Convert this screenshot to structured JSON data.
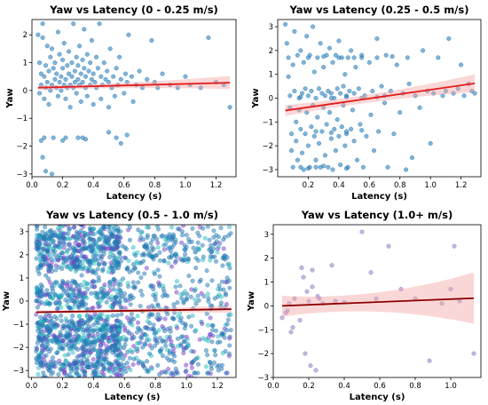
{
  "chart_data": [
    {
      "type": "scatter",
      "title": "Yaw vs Latency (0 - 0.25 m/s)",
      "xlabel": "Latency (s)",
      "ylabel": "Yaw",
      "xlim": [
        0.0,
        1.33
      ],
      "ylim": [
        -3.1,
        2.55
      ],
      "xticks": [
        0.0,
        0.2,
        0.4,
        0.6,
        0.8,
        1.0,
        1.2
      ],
      "yticks": [
        -3,
        -2,
        -1,
        0,
        1,
        2
      ],
      "point_color": "#1f77b4",
      "fit_color": "#e31a1c",
      "band_color": "#f4a6a6",
      "regression": {
        "x": [
          0.04,
          1.29
        ],
        "y": [
          0.1,
          0.28
        ],
        "ci_lower": [
          0.02,
          0.05
        ],
        "ci_upper": [
          0.18,
          0.52
        ]
      },
      "points": [
        [
          0.04,
          2.0
        ],
        [
          0.05,
          1.0
        ],
        [
          0.05,
          -0.1
        ],
        [
          0.06,
          0.2
        ],
        [
          0.06,
          0.6
        ],
        [
          0.07,
          2.4
        ],
        [
          0.07,
          1.9
        ],
        [
          0.08,
          0.5
        ],
        [
          0.08,
          -0.3
        ],
        [
          0.09,
          0.1
        ],
        [
          0.09,
          0.9
        ],
        [
          0.1,
          1.6
        ],
        [
          0.1,
          0.3
        ],
        [
          0.11,
          -0.5
        ],
        [
          0.11,
          0.7
        ],
        [
          0.12,
          1.2
        ],
        [
          0.12,
          0.0
        ],
        [
          0.13,
          1.5
        ],
        [
          0.13,
          0.2
        ],
        [
          0.14,
          0.8
        ],
        [
          0.14,
          -1.7
        ],
        [
          0.15,
          0.4
        ],
        [
          0.15,
          1.0
        ],
        [
          0.16,
          0.1
        ],
        [
          0.16,
          0.6
        ],
        [
          0.17,
          -0.2
        ],
        [
          0.17,
          2.1
        ],
        [
          0.18,
          0.3
        ],
        [
          0.18,
          1.3
        ],
        [
          0.19,
          0.5
        ],
        [
          0.19,
          0.0
        ],
        [
          0.2,
          1.1
        ],
        [
          0.2,
          0.8
        ],
        [
          0.21,
          0.2
        ],
        [
          0.21,
          1.7
        ],
        [
          0.22,
          0.4
        ],
        [
          0.22,
          -0.3
        ],
        [
          0.23,
          0.9
        ],
        [
          0.23,
          0.1
        ],
        [
          0.24,
          1.4
        ],
        [
          0.24,
          0.6
        ],
        [
          0.25,
          0.2
        ],
        [
          0.25,
          -0.6
        ],
        [
          0.26,
          0.5
        ],
        [
          0.26,
          1.0
        ],
        [
          0.27,
          0.1
        ],
        [
          0.27,
          2.4
        ],
        [
          0.28,
          0.3
        ],
        [
          0.28,
          0.7
        ],
        [
          0.29,
          1.2
        ],
        [
          0.29,
          -0.1
        ],
        [
          0.3,
          0.4
        ],
        [
          0.3,
          0.9
        ],
        [
          0.31,
          0.2
        ],
        [
          0.31,
          1.6
        ],
        [
          0.32,
          0.6
        ],
        [
          0.32,
          -0.4
        ],
        [
          0.33,
          1.1
        ],
        [
          0.33,
          0.3
        ],
        [
          0.34,
          0.8
        ],
        [
          0.34,
          2.2
        ],
        [
          0.35,
          0.1
        ],
        [
          0.35,
          0.5
        ],
        [
          0.36,
          1.3
        ],
        [
          0.36,
          -0.2
        ],
        [
          0.37,
          0.7
        ],
        [
          0.38,
          0.2
        ],
        [
          0.38,
          1.0
        ],
        [
          0.39,
          0.4
        ],
        [
          0.39,
          1.8
        ],
        [
          0.4,
          0.6
        ],
        [
          0.4,
          -0.5
        ],
        [
          0.41,
          0.3
        ],
        [
          0.42,
          1.2
        ],
        [
          0.42,
          0.1
        ],
        [
          0.43,
          0.8
        ],
        [
          0.44,
          2.4
        ],
        [
          0.45,
          0.5
        ],
        [
          0.45,
          -0.3
        ],
        [
          0.46,
          0.2
        ],
        [
          0.47,
          1.0
        ],
        [
          0.48,
          0.4
        ],
        [
          0.49,
          0.7
        ],
        [
          0.5,
          -0.6
        ],
        [
          0.5,
          0.3
        ],
        [
          0.51,
          1.5
        ],
        [
          0.52,
          0.1
        ],
        [
          0.53,
          0.5
        ],
        [
          0.54,
          -0.2
        ],
        [
          0.55,
          0.8
        ],
        [
          0.56,
          0.2
        ],
        [
          0.57,
          1.2
        ],
        [
          0.58,
          0.4
        ],
        [
          0.6,
          -0.1
        ],
        [
          0.61,
          0.6
        ],
        [
          0.62,
          0.3
        ],
        [
          0.63,
          2.0
        ],
        [
          0.65,
          0.5
        ],
        [
          0.66,
          -0.4
        ],
        [
          0.68,
          0.2
        ],
        [
          0.7,
          0.7
        ],
        [
          0.72,
          0.1
        ],
        [
          0.75,
          0.4
        ],
        [
          0.78,
          1.8
        ],
        [
          0.8,
          0.3
        ],
        [
          0.82,
          0.1
        ],
        [
          0.85,
          0.6
        ],
        [
          0.9,
          0.2
        ],
        [
          0.95,
          0.1
        ],
        [
          1.0,
          0.5
        ],
        [
          1.03,
          0.2
        ],
        [
          1.1,
          0.1
        ],
        [
          1.15,
          1.9
        ],
        [
          1.2,
          0.3
        ],
        [
          1.25,
          0.2
        ],
        [
          1.29,
          -0.6
        ],
        [
          0.06,
          -1.8
        ],
        [
          0.08,
          -1.7
        ],
        [
          0.07,
          -2.4
        ],
        [
          0.09,
          -2.9
        ],
        [
          0.13,
          -3.0
        ],
        [
          0.2,
          -1.8
        ],
        [
          0.22,
          -1.7
        ],
        [
          0.33,
          -1.7
        ],
        [
          0.35,
          -1.75
        ],
        [
          0.5,
          -1.5
        ],
        [
          0.55,
          -1.7
        ],
        [
          0.58,
          -1.9
        ],
        [
          0.62,
          -1.6
        ],
        [
          0.3,
          -1.7
        ]
      ]
    },
    {
      "type": "scatter",
      "title": "Yaw vs Latency (0.25 - 0.5 m/s)",
      "xlabel": "Latency (s)",
      "ylabel": "Yaw",
      "xlim": [
        0.0,
        1.33
      ],
      "ylim": [
        -3.3,
        3.3
      ],
      "xticks": [
        0.2,
        0.4,
        0.6,
        0.8,
        1.0,
        1.2
      ],
      "yticks": [
        -3,
        -2,
        -1,
        0,
        1,
        2,
        3
      ],
      "point_color": "#1f77b4",
      "fit_color": "#e31a1c",
      "band_color": "#f4a6a6",
      "regression": {
        "x": [
          0.05,
          1.29
        ],
        "y": [
          -0.52,
          0.62
        ],
        "ci_lower": [
          -0.75,
          0.25
        ],
        "ci_upper": [
          -0.3,
          1.0
        ]
      },
      "points": [
        [
          0.05,
          3.1
        ],
        [
          0.06,
          2.3
        ],
        [
          0.07,
          1.7
        ],
        [
          0.07,
          0.9
        ],
        [
          0.08,
          0.1
        ],
        [
          0.08,
          -0.4
        ],
        [
          0.09,
          -1.5
        ],
        [
          0.09,
          -2.2
        ],
        [
          0.1,
          -2.9
        ],
        [
          0.1,
          1.4
        ],
        [
          0.11,
          2.8
        ],
        [
          0.11,
          0.3
        ],
        [
          0.12,
          -1.0
        ],
        [
          0.12,
          -1.8
        ],
        [
          0.13,
          -2.6
        ],
        [
          0.13,
          1.8
        ],
        [
          0.14,
          0.0
        ],
        [
          0.14,
          -0.5
        ],
        [
          0.15,
          2.0
        ],
        [
          0.15,
          -1.3
        ],
        [
          0.16,
          0.2
        ],
        [
          0.16,
          -2.3
        ],
        [
          0.17,
          1.5
        ],
        [
          0.17,
          -3.0
        ],
        [
          0.18,
          0.4
        ],
        [
          0.18,
          -1.5
        ],
        [
          0.19,
          2.6
        ],
        [
          0.19,
          -0.6
        ],
        [
          0.2,
          0.1
        ],
        [
          0.2,
          -2.0
        ],
        [
          0.21,
          1.8
        ],
        [
          0.21,
          -2.9
        ],
        [
          0.22,
          0.3
        ],
        [
          0.22,
          -1.2
        ],
        [
          0.23,
          3.0
        ],
        [
          0.23,
          -0.3
        ],
        [
          0.24,
          1.1
        ],
        [
          0.24,
          -1.6
        ],
        [
          0.25,
          0.0
        ],
        [
          0.25,
          -2.6
        ],
        [
          0.26,
          1.7
        ],
        [
          0.26,
          -0.8
        ],
        [
          0.27,
          0.4
        ],
        [
          0.27,
          -1.9
        ],
        [
          0.28,
          2.3
        ],
        [
          0.28,
          -2.9
        ],
        [
          0.29,
          0.2
        ],
        [
          0.29,
          -1.4
        ],
        [
          0.3,
          1.3
        ],
        [
          0.3,
          -0.4
        ],
        [
          0.31,
          0.1
        ],
        [
          0.31,
          -2.4
        ],
        [
          0.32,
          1.8
        ],
        [
          0.32,
          -1.1
        ],
        [
          0.33,
          0.3
        ],
        [
          0.33,
          -2.9
        ],
        [
          0.34,
          2.1
        ],
        [
          0.34,
          -0.6
        ],
        [
          0.35,
          0.2
        ],
        [
          0.35,
          -1.7
        ],
        [
          0.36,
          1.5
        ],
        [
          0.36,
          -3.0
        ],
        [
          0.37,
          0.0
        ],
        [
          0.37,
          -1.3
        ],
        [
          0.38,
          1.8
        ],
        [
          0.38,
          -2.2
        ],
        [
          0.39,
          0.4
        ],
        [
          0.39,
          -0.9
        ],
        [
          0.4,
          2.4
        ],
        [
          0.4,
          -1.6
        ],
        [
          0.41,
          0.2
        ],
        [
          0.41,
          -2.8
        ],
        [
          0.42,
          1.7
        ],
        [
          0.42,
          -1.2
        ],
        [
          0.43,
          0.5
        ],
        [
          0.43,
          -0.3
        ],
        [
          0.44,
          1.0
        ],
        [
          0.44,
          -2.0
        ],
        [
          0.45,
          0.1
        ],
        [
          0.45,
          -1.5
        ],
        [
          0.46,
          1.7
        ],
        [
          0.46,
          -2.9
        ],
        [
          0.47,
          0.3
        ],
        [
          0.48,
          -1.3
        ],
        [
          0.48,
          2.0
        ],
        [
          0.49,
          -0.5
        ],
        [
          0.5,
          0.2
        ],
        [
          0.5,
          -1.8
        ],
        [
          0.51,
          1.3
        ],
        [
          0.52,
          -2.6
        ],
        [
          0.53,
          0.4
        ],
        [
          0.54,
          -1.1
        ],
        [
          0.55,
          1.8
        ],
        [
          0.56,
          -2.9
        ],
        [
          0.57,
          0.1
        ],
        [
          0.58,
          -1.6
        ],
        [
          0.6,
          1.5
        ],
        [
          0.61,
          -0.7
        ],
        [
          0.62,
          0.3
        ],
        [
          0.63,
          -2.2
        ],
        [
          0.65,
          2.5
        ],
        [
          0.66,
          -1.4
        ],
        [
          0.68,
          0.5
        ],
        [
          0.7,
          -0.2
        ],
        [
          0.71,
          1.8
        ],
        [
          0.72,
          -2.9
        ],
        [
          0.74,
          0.3
        ],
        [
          0.76,
          -1.5
        ],
        [
          0.78,
          1.4
        ],
        [
          0.8,
          -0.6
        ],
        [
          0.82,
          0.2
        ],
        [
          0.84,
          -3.0
        ],
        [
          0.86,
          0.6
        ],
        [
          0.88,
          -2.5
        ],
        [
          0.9,
          0.1
        ],
        [
          0.93,
          -0.4
        ],
        [
          0.95,
          2.0
        ],
        [
          0.98,
          0.3
        ],
        [
          1.0,
          -1.9
        ],
        [
          1.02,
          0.2
        ],
        [
          1.05,
          1.7
        ],
        [
          1.08,
          0.1
        ],
        [
          1.1,
          0.3
        ],
        [
          1.12,
          2.5
        ],
        [
          1.15,
          0.2
        ],
        [
          1.18,
          0.4
        ],
        [
          1.2,
          1.4
        ],
        [
          1.22,
          0.1
        ],
        [
          1.25,
          0.6
        ],
        [
          1.27,
          0.3
        ],
        [
          1.29,
          0.2
        ],
        [
          0.15,
          -2.9
        ],
        [
          0.2,
          -2.95
        ],
        [
          0.25,
          -2.9
        ],
        [
          0.3,
          -2.85
        ],
        [
          0.45,
          -2.95
        ],
        [
          0.55,
          1.7
        ],
        [
          0.65,
          1.7
        ],
        [
          0.75,
          1.75
        ],
        [
          0.85,
          1.7
        ],
        [
          0.2,
          1.7
        ],
        [
          0.3,
          1.75
        ],
        [
          0.4,
          1.7
        ],
        [
          0.5,
          1.7
        ],
        [
          0.35,
          0.0
        ],
        [
          0.45,
          0.05
        ],
        [
          0.55,
          0.0
        ],
        [
          0.65,
          0.05
        ],
        [
          0.25,
          -1.4
        ],
        [
          0.35,
          -1.45
        ],
        [
          0.45,
          -1.4
        ],
        [
          0.55,
          -1.35
        ],
        [
          0.15,
          0.05
        ],
        [
          0.7,
          0.1
        ]
      ]
    },
    {
      "type": "scatter",
      "title": "Yaw vs Latency (0.5 - 1.0 m/s)",
      "xlabel": "Latency (s)",
      "ylabel": "Yaw",
      "xlim": [
        -0.02,
        1.32
      ],
      "ylim": [
        -3.3,
        3.3
      ],
      "xticks": [
        0.0,
        0.2,
        0.4,
        0.6,
        0.8,
        1.0,
        1.2
      ],
      "yticks": [
        -3,
        -2,
        -1,
        0,
        1,
        2,
        3
      ],
      "point_color": "#1f77b4",
      "point_color_2": "#7a3cc8",
      "point_color_3": "#28c0c0",
      "fit_color": "#8b0000",
      "band_color": "#f4a6a6",
      "regression": {
        "x": [
          0.03,
          1.29
        ],
        "y": [
          -0.48,
          -0.35
        ],
        "ci_lower": [
          -0.55,
          -0.5
        ],
        "ci_upper": [
          -0.41,
          -0.2
        ]
      },
      "bands": [
        -3.0,
        -2.5,
        -1.4,
        -0.9,
        0.0,
        0.5,
        1.6,
        2.0,
        3.0,
        2.6,
        -1.8
      ],
      "density": "dense"
    },
    {
      "type": "scatter",
      "title": "Yaw vs Latency (1.0+ m/s)",
      "xlabel": "Latency (s)",
      "ylabel": "Yaw",
      "xlim": [
        0.0,
        1.17
      ],
      "ylim": [
        -3.0,
        3.4
      ],
      "xticks": [
        0.0,
        0.2,
        0.4,
        0.6,
        0.8,
        1.0
      ],
      "yticks": [
        -3,
        -2,
        -1,
        0,
        1,
        2,
        3
      ],
      "point_color": "#8e7cc3",
      "fit_color": "#8b0000",
      "band_color": "#f4a6a6",
      "regression": {
        "x": [
          0.05,
          1.13
        ],
        "y": [
          0.0,
          0.32
        ],
        "ci_lower": [
          -0.45,
          -0.75
        ],
        "ci_upper": [
          0.42,
          1.4
        ]
      },
      "points": [
        [
          0.05,
          -0.5
        ],
        [
          0.07,
          -0.3
        ],
        [
          0.08,
          -0.2
        ],
        [
          0.09,
          0.1
        ],
        [
          0.1,
          -1.1
        ],
        [
          0.11,
          -0.9
        ],
        [
          0.12,
          0.3
        ],
        [
          0.15,
          -0.6
        ],
        [
          0.16,
          1.6
        ],
        [
          0.17,
          1.2
        ],
        [
          0.18,
          -2.0
        ],
        [
          0.19,
          0.6
        ],
        [
          0.2,
          0.2
        ],
        [
          0.21,
          -2.5
        ],
        [
          0.22,
          1.5
        ],
        [
          0.22,
          0.8
        ],
        [
          0.24,
          -2.7
        ],
        [
          0.25,
          0.4
        ],
        [
          0.26,
          0.3
        ],
        [
          0.28,
          0.1
        ],
        [
          0.33,
          1.7
        ],
        [
          0.35,
          0.2
        ],
        [
          0.4,
          0.15
        ],
        [
          0.5,
          3.1
        ],
        [
          0.55,
          1.4
        ],
        [
          0.58,
          0.3
        ],
        [
          0.65,
          2.5
        ],
        [
          0.72,
          0.7
        ],
        [
          0.8,
          0.3
        ],
        [
          0.88,
          -2.3
        ],
        [
          0.95,
          0.1
        ],
        [
          1.0,
          0.7
        ],
        [
          1.02,
          2.5
        ],
        [
          1.05,
          0.2
        ],
        [
          1.13,
          -2.0
        ]
      ]
    }
  ]
}
